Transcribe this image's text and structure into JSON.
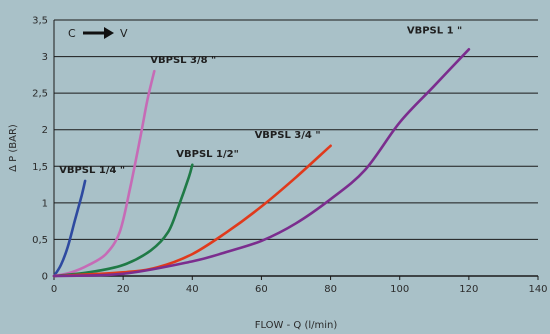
{
  "chart_data": {
    "type": "line",
    "xlabel": "FLOW - Q (l/min)",
    "ylabel": "Δ  P (BAR)",
    "xlim": [
      0,
      140
    ],
    "ylim": [
      0,
      3.5
    ],
    "x_ticks": [
      "0",
      "20",
      "40",
      "60",
      "80",
      "100",
      "120",
      "140"
    ],
    "y_ticks": [
      "0",
      "0,5",
      "1",
      "1,5",
      "2",
      "2,5",
      "3",
      "3,5"
    ],
    "grid": "horizontal",
    "annotation": {
      "from": "C",
      "to": "V"
    },
    "background": "#a9c1c8",
    "series": [
      {
        "name": "VBPSL 1/4 \"",
        "color": "#2e4aa0",
        "points": [
          [
            0,
            0
          ],
          [
            2,
            0.15
          ],
          [
            4,
            0.4
          ],
          [
            6,
            0.75
          ],
          [
            8,
            1.1
          ],
          [
            9,
            1.3
          ]
        ]
      },
      {
        "name": "VBPSL 3/8 \"",
        "color": "#c66bb6",
        "points": [
          [
            0,
            0
          ],
          [
            5,
            0.05
          ],
          [
            10,
            0.15
          ],
          [
            15,
            0.3
          ],
          [
            19,
            0.6
          ],
          [
            22,
            1.2
          ],
          [
            25,
            1.9
          ],
          [
            27,
            2.4
          ],
          [
            29,
            2.8
          ]
        ]
      },
      {
        "name": "VBPSL 1/2\"",
        "color": "#1f7a46",
        "points": [
          [
            0,
            0
          ],
          [
            10,
            0.05
          ],
          [
            20,
            0.15
          ],
          [
            28,
            0.35
          ],
          [
            33,
            0.6
          ],
          [
            36,
            0.95
          ],
          [
            39,
            1.35
          ],
          [
            40,
            1.52
          ]
        ]
      },
      {
        "name": "VBPSL 3/4 \"",
        "color": "#e03a1c",
        "points": [
          [
            0,
            0
          ],
          [
            20,
            0.05
          ],
          [
            30,
            0.12
          ],
          [
            40,
            0.3
          ],
          [
            50,
            0.6
          ],
          [
            60,
            0.95
          ],
          [
            70,
            1.35
          ],
          [
            80,
            1.78
          ]
        ]
      },
      {
        "name": "VBPSL 1 \"",
        "color": "#7b2d8e",
        "points": [
          [
            0,
            0
          ],
          [
            20,
            0.03
          ],
          [
            40,
            0.2
          ],
          [
            50,
            0.33
          ],
          [
            60,
            0.48
          ],
          [
            70,
            0.72
          ],
          [
            80,
            1.05
          ],
          [
            90,
            1.45
          ],
          [
            100,
            2.1
          ],
          [
            110,
            2.6
          ],
          [
            120,
            3.1
          ]
        ]
      }
    ]
  }
}
